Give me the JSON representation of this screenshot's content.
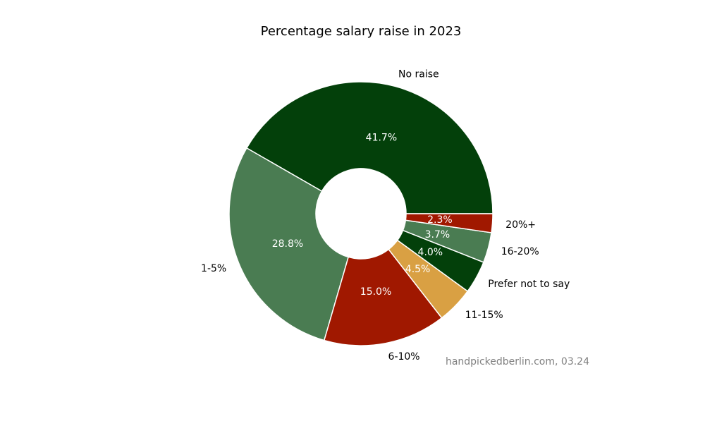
{
  "chart_data": {
    "type": "pie",
    "donut": true,
    "title": "Percentage salary raise in 2023",
    "categories": [
      "No raise",
      "1-5%",
      "6-10%",
      "11-15%",
      "Prefer not to say",
      "16-20%",
      "20%+"
    ],
    "values": [
      41.7,
      28.8,
      15.0,
      4.5,
      4.0,
      3.7,
      2.3
    ],
    "labels": [
      "41.7%",
      "28.8%",
      "15.0%",
      "4.5%",
      "4.0%",
      "3.7%",
      "2.3%"
    ],
    "colors": [
      "#03400a",
      "#4a7c52",
      "#a01800",
      "#d9a043",
      "#03400a",
      "#4a7c52",
      "#a01800"
    ],
    "start_angle_deg": 0,
    "direction": "counterclockwise",
    "source": "handpickedberlin.com, 03.24"
  }
}
